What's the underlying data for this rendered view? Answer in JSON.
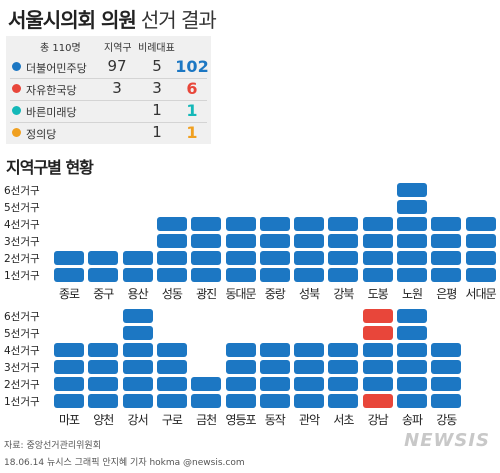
{
  "header": {
    "title_bold": "서울시의회 의원",
    "title_light": "선거 결과"
  },
  "summary": {
    "headers": {
      "total": "총 110명",
      "district": "지역구",
      "proportional": "비례대표"
    },
    "parties": [
      {
        "name": "더불어민주당",
        "color": "#1c77c3",
        "district": "97",
        "proportional": "5",
        "total": "102"
      },
      {
        "name": "자유한국당",
        "color": "#e8463a",
        "district": "3",
        "proportional": "3",
        "total": "6"
      },
      {
        "name": "바른미래당",
        "color": "#14b8b8",
        "district": "",
        "proportional": "1",
        "total": "1"
      },
      {
        "name": "정의당",
        "color": "#f0a020",
        "district": "",
        "proportional": "1",
        "total": "1"
      }
    ]
  },
  "section_title": "지역구별 현황",
  "y_labels": [
    "1선거구",
    "2선거구",
    "3선거구",
    "4선거구",
    "5선거구",
    "6선거구"
  ],
  "chart_data": [
    {
      "type": "bar",
      "categories": [
        "종로",
        "중구",
        "용산",
        "성동",
        "광진",
        "동대문",
        "중랑",
        "성북",
        "강북",
        "도봉",
        "노원",
        "은평",
        "서대문"
      ],
      "seats": [
        [
          "D",
          "D"
        ],
        [
          "D",
          "D"
        ],
        [
          "D",
          "D"
        ],
        [
          "D",
          "D",
          "D",
          "D"
        ],
        [
          "D",
          "D",
          "D",
          "D"
        ],
        [
          "D",
          "D",
          "D",
          "D"
        ],
        [
          "D",
          "D",
          "D",
          "D"
        ],
        [
          "D",
          "D",
          "D",
          "D"
        ],
        [
          "D",
          "D",
          "D",
          "D"
        ],
        [
          "D",
          "D",
          "D",
          "D"
        ],
        [
          "D",
          "D",
          "D",
          "D",
          "D",
          "D"
        ],
        [
          "D",
          "D",
          "D",
          "D"
        ],
        [
          "D",
          "D",
          "D",
          "D"
        ]
      ],
      "values": [
        2,
        2,
        2,
        4,
        4,
        4,
        4,
        4,
        4,
        4,
        6,
        4,
        4
      ]
    },
    {
      "type": "bar",
      "categories": [
        "마포",
        "양천",
        "강서",
        "구로",
        "금천",
        "영등포",
        "동작",
        "관악",
        "서초",
        "강남",
        "송파",
        "강동"
      ],
      "seats": [
        [
          "D",
          "D",
          "D",
          "D"
        ],
        [
          "D",
          "D",
          "D",
          "D"
        ],
        [
          "D",
          "D",
          "D",
          "D",
          "D",
          "D"
        ],
        [
          "D",
          "D",
          "D",
          "D"
        ],
        [
          "D",
          "D"
        ],
        [
          "D",
          "D",
          "D",
          "D"
        ],
        [
          "D",
          "D",
          "D",
          "D"
        ],
        [
          "D",
          "D",
          "D",
          "D"
        ],
        [
          "D",
          "D",
          "D",
          "D"
        ],
        [
          "L",
          "D",
          "D",
          "D",
          "L",
          "L"
        ],
        [
          "D",
          "D",
          "D",
          "D",
          "D",
          "D"
        ],
        [
          "D",
          "D",
          "D",
          "D"
        ]
      ],
      "values": [
        4,
        4,
        6,
        4,
        2,
        4,
        4,
        4,
        4,
        6,
        6,
        4
      ]
    }
  ],
  "colors": {
    "D": "#1c77c3",
    "L": "#e8463a"
  },
  "footer": {
    "source": "자료: 중앙선거관리위원회",
    "credit": "18.06.14 뉴시스 그래픽 안지혜 기자 hokma @newsis.com",
    "logo": "NEWSIS"
  }
}
